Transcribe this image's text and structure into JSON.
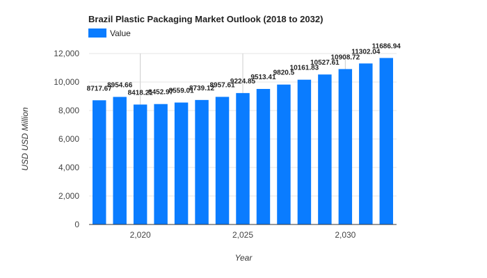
{
  "chart_data": {
    "type": "bar",
    "title": "Brazil Plastic Packaging Market Outlook (2018 to 2032)",
    "xlabel": "Year",
    "ylabel": "USD USD Million",
    "legend": {
      "position": "top-left",
      "entries": [
        "Value"
      ]
    },
    "x": [
      2018,
      2019,
      2020,
      2021,
      2022,
      2023,
      2024,
      2025,
      2026,
      2027,
      2028,
      2029,
      2030,
      2031,
      2032
    ],
    "series": [
      {
        "name": "Value",
        "color": "#0a7cff",
        "values": [
          8717.67,
          8954.66,
          8418.21,
          8452.97,
          8559.01,
          8739.12,
          8957.61,
          9224.85,
          9513.41,
          9820.5,
          10161.83,
          10527.61,
          10908.72,
          11302.04,
          11686.94
        ],
        "labels": [
          "8717.67",
          "8954.66",
          "8418.21",
          "8452.97",
          "8559.01",
          "8739.12",
          "8957.61",
          "9224.85",
          "9513.41",
          "9820.5",
          "10161.83",
          "10527.61",
          "10908.72",
          "11302.04",
          "11686.94"
        ]
      }
    ],
    "ylim": [
      0,
      12000
    ],
    "yticks": [
      0,
      2000,
      4000,
      6000,
      8000,
      10000,
      12000
    ],
    "ytick_labels": [
      "0",
      "2,000",
      "4,000",
      "6,000",
      "8,000",
      "10,000",
      "12,000"
    ],
    "xticks": [
      2020,
      2025,
      2030
    ],
    "xtick_labels": [
      "2,020",
      "2,025",
      "2,030"
    ],
    "grid": true
  }
}
